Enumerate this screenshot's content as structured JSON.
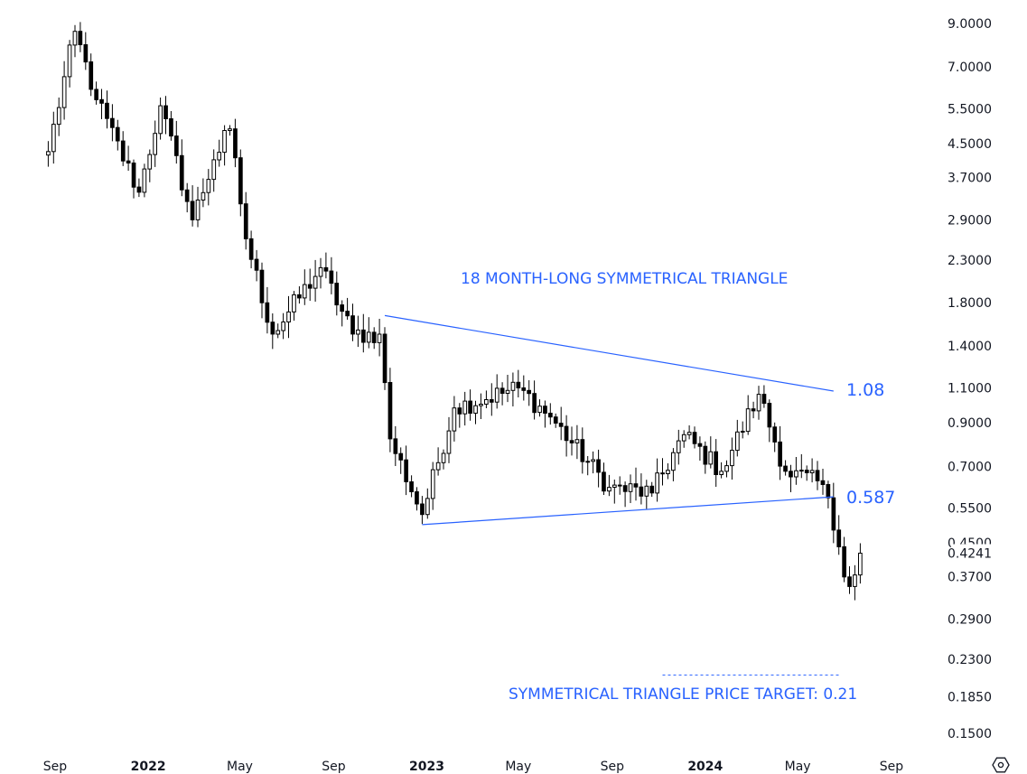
{
  "chart_data": {
    "type": "candlestick",
    "y_scale": "log",
    "ylim": [
      0.14,
      10.0
    ],
    "y_ticks": [
      "9.0000",
      "7.0000",
      "5.5000",
      "4.5000",
      "3.7000",
      "2.9000",
      "2.3000",
      "1.8000",
      "1.4000",
      "1.1000",
      "0.9000",
      "0.7000",
      "0.5500",
      "0.4500",
      "0.3700",
      "0.2900",
      "0.2300",
      "0.1850",
      "0.1500"
    ],
    "y_tick_values": [
      9.0,
      7.0,
      5.5,
      4.5,
      3.7,
      2.9,
      2.3,
      1.8,
      1.4,
      1.1,
      0.9,
      0.7,
      0.55,
      0.45,
      0.37,
      0.29,
      0.23,
      0.185,
      0.15
    ],
    "last_price_label": "0.4241",
    "last_price": 0.4241,
    "x_ticks": [
      {
        "label": "Sep",
        "date": "2021-09-01",
        "bold": false
      },
      {
        "label": "2022",
        "date": "2022-01-01",
        "bold": true
      },
      {
        "label": "May",
        "date": "2022-05-01",
        "bold": false
      },
      {
        "label": "Sep",
        "date": "2022-09-01",
        "bold": false
      },
      {
        "label": "2023",
        "date": "2023-01-01",
        "bold": true
      },
      {
        "label": "May",
        "date": "2023-05-01",
        "bold": false
      },
      {
        "label": "Sep",
        "date": "2023-09-01",
        "bold": false
      },
      {
        "label": "2024",
        "date": "2024-01-01",
        "bold": true
      },
      {
        "label": "May",
        "date": "2024-05-01",
        "bold": false
      },
      {
        "label": "Sep",
        "date": "2024-09-01",
        "bold": false
      }
    ],
    "xlim": [
      "2021-08-18",
      "2024-08-20"
    ],
    "annotations": {
      "triangle_title": "18 MONTH-LONG SYMMETRICAL TRIANGLE",
      "upper_level": "1.08",
      "lower_level": "0.587",
      "target_label": "SYMMETRICAL TRIANGLE PRICE TARGET: 0.21"
    },
    "trendlines": [
      {
        "name": "upper",
        "start": {
          "date": "2022-11-07",
          "value": 1.67
        },
        "end": {
          "date": "2024-06-17",
          "value": 1.08
        }
      },
      {
        "name": "lower",
        "start": {
          "date": "2022-12-26",
          "value": 0.5
        },
        "end": {
          "date": "2024-06-17",
          "value": 0.587
        }
      }
    ],
    "target_line": {
      "value": 0.21,
      "start_date": "2023-11-06",
      "end_date": "2024-06-24"
    },
    "colors": {
      "annotation": "#2962ff",
      "candle": "#000000",
      "up_fill": "#ffffff",
      "down_fill": "#000000",
      "axis_text": "#131722"
    },
    "key_closes": [
      {
        "date": "2021-08-23",
        "close": 4.3
      },
      {
        "date": "2021-09-27",
        "close": 8.6
      },
      {
        "date": "2021-10-25",
        "close": 5.8
      },
      {
        "date": "2021-12-20",
        "close": 3.4
      },
      {
        "date": "2022-01-17",
        "close": 5.6
      },
      {
        "date": "2022-02-28",
        "close": 2.9
      },
      {
        "date": "2022-03-28",
        "close": 4.1
      },
      {
        "date": "2022-04-18",
        "close": 4.9
      },
      {
        "date": "2022-05-09",
        "close": 2.6
      },
      {
        "date": "2022-06-13",
        "close": 1.5
      },
      {
        "date": "2022-08-15",
        "close": 2.2
      },
      {
        "date": "2022-09-26",
        "close": 1.5
      },
      {
        "date": "2022-10-31",
        "close": 1.5
      },
      {
        "date": "2022-11-14",
        "close": 0.82
      },
      {
        "date": "2022-12-26",
        "close": 0.53
      },
      {
        "date": "2023-02-06",
        "close": 0.98
      },
      {
        "date": "2023-05-01",
        "close": 1.1
      },
      {
        "date": "2023-06-12",
        "close": 0.93
      },
      {
        "date": "2023-08-28",
        "close": 0.62
      },
      {
        "date": "2023-10-23",
        "close": 0.6
      },
      {
        "date": "2023-12-04",
        "close": 0.84
      },
      {
        "date": "2024-01-22",
        "close": 0.68
      },
      {
        "date": "2024-03-11",
        "close": 1.06
      },
      {
        "date": "2024-04-15",
        "close": 0.68
      },
      {
        "date": "2024-06-03",
        "close": 0.63
      },
      {
        "date": "2024-06-24",
        "close": 0.44
      },
      {
        "date": "2024-07-08",
        "close": 0.35
      },
      {
        "date": "2024-07-22",
        "close": 0.4241
      }
    ]
  },
  "ui": {
    "settings_icon": "settings-gear-icon"
  }
}
